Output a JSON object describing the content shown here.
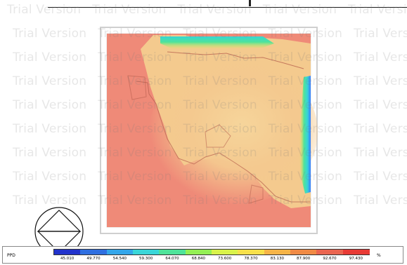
{
  "watermark": {
    "text": "Trial Version"
  },
  "legend": {
    "title": "PPD",
    "unit": "%",
    "ticks": [
      "45.010",
      "49.770",
      "54.540",
      "59.300",
      "64.070",
      "68.840",
      "73.600",
      "78.370",
      "83.130",
      "87.900",
      "92.670",
      "97.430"
    ],
    "colors": [
      "#2233cc",
      "#2f6fe0",
      "#34a6ea",
      "#3ad6d8",
      "#4fe39a",
      "#94ef55",
      "#d9f24b",
      "#f7e04b",
      "#f6b447",
      "#f08a45",
      "#ea6550",
      "#e83b36"
    ]
  },
  "colors": {
    "field_base": "#ef8a78",
    "field_mid": "#f6c79a",
    "field_warm": "#f4d98f",
    "cyan": "#37d6d5",
    "blue": "#4b86ff",
    "green": "#47e08a"
  }
}
